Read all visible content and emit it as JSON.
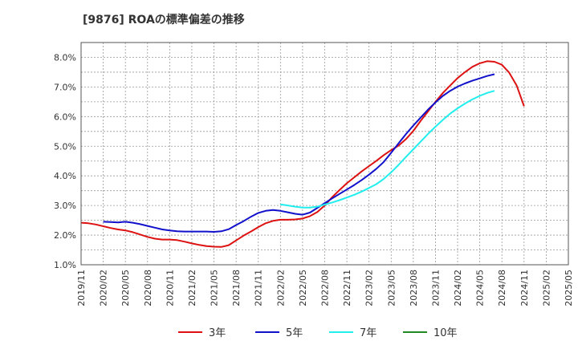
{
  "chart_data": {
    "type": "line",
    "title": "[9876]  ROAの標準偏差の推移",
    "xlabel": "",
    "ylabel": "",
    "ylim": [
      1.0,
      8.5
    ],
    "yticks": [
      1.0,
      2.0,
      3.0,
      4.0,
      5.0,
      6.0,
      7.0,
      8.0
    ],
    "ytick_labels": [
      "1.0%",
      "2.0%",
      "3.0%",
      "4.0%",
      "5.0%",
      "6.0%",
      "7.0%",
      "8.0%"
    ],
    "xtick_labels": [
      "2019/11",
      "2020/02",
      "2020/05",
      "2020/08",
      "2020/11",
      "2021/02",
      "2021/05",
      "2021/08",
      "2021/11",
      "2022/02",
      "2022/05",
      "2022/08",
      "2022/11",
      "2023/02",
      "2023/05",
      "2023/08",
      "2023/11",
      "2024/02",
      "2024/05",
      "2024/08",
      "2024/11",
      "2025/02",
      "2025/05"
    ],
    "x_start": "2019/11",
    "grid": true,
    "legend_position": "bottom",
    "series": [
      {
        "name": "3年",
        "color": "#dd1111",
        "start": "2019/11",
        "values": [
          2.42,
          2.4,
          2.36,
          2.3,
          2.24,
          2.19,
          2.16,
          2.1,
          2.02,
          1.94,
          1.88,
          1.85,
          1.85,
          1.83,
          1.78,
          1.72,
          1.67,
          1.63,
          1.61,
          1.6,
          1.66,
          1.82,
          1.98,
          2.12,
          2.27,
          2.4,
          2.48,
          2.52,
          2.52,
          2.53,
          2.56,
          2.64,
          2.78,
          3.0,
          3.28,
          3.52,
          3.75,
          3.95,
          4.15,
          4.33,
          4.51,
          4.7,
          4.87,
          5.02,
          5.24,
          5.52,
          5.86,
          6.18,
          6.5,
          6.8,
          7.05,
          7.3,
          7.5,
          7.68,
          7.8,
          7.87,
          7.85,
          7.75,
          7.48,
          7.05,
          6.35
        ]
      },
      {
        "name": "5年",
        "color": "#1111cc",
        "start": "2020/02",
        "values": [
          2.45,
          2.44,
          2.43,
          2.45,
          2.42,
          2.37,
          2.31,
          2.25,
          2.19,
          2.16,
          2.13,
          2.12,
          2.12,
          2.12,
          2.12,
          2.11,
          2.13,
          2.2,
          2.34,
          2.47,
          2.62,
          2.75,
          2.82,
          2.85,
          2.82,
          2.77,
          2.72,
          2.69,
          2.76,
          2.92,
          3.08,
          3.24,
          3.39,
          3.54,
          3.69,
          3.86,
          4.04,
          4.24,
          4.47,
          4.78,
          5.1,
          5.41,
          5.7,
          5.97,
          6.24,
          6.48,
          6.7,
          6.87,
          7.01,
          7.12,
          7.21,
          7.29,
          7.37,
          7.43
        ]
      },
      {
        "name": "7年",
        "color": "#22eeee",
        "start": "2022/02",
        "values": [
          3.04,
          3.0,
          2.96,
          2.93,
          2.93,
          2.96,
          3.03,
          3.1,
          3.18,
          3.27,
          3.36,
          3.47,
          3.59,
          3.72,
          3.9,
          4.12,
          4.37,
          4.64,
          4.9,
          5.16,
          5.42,
          5.66,
          5.89,
          6.1,
          6.28,
          6.44,
          6.58,
          6.7,
          6.8,
          6.87
        ]
      },
      {
        "name": "10年",
        "color": "#228822",
        "start": "",
        "values": []
      }
    ]
  }
}
